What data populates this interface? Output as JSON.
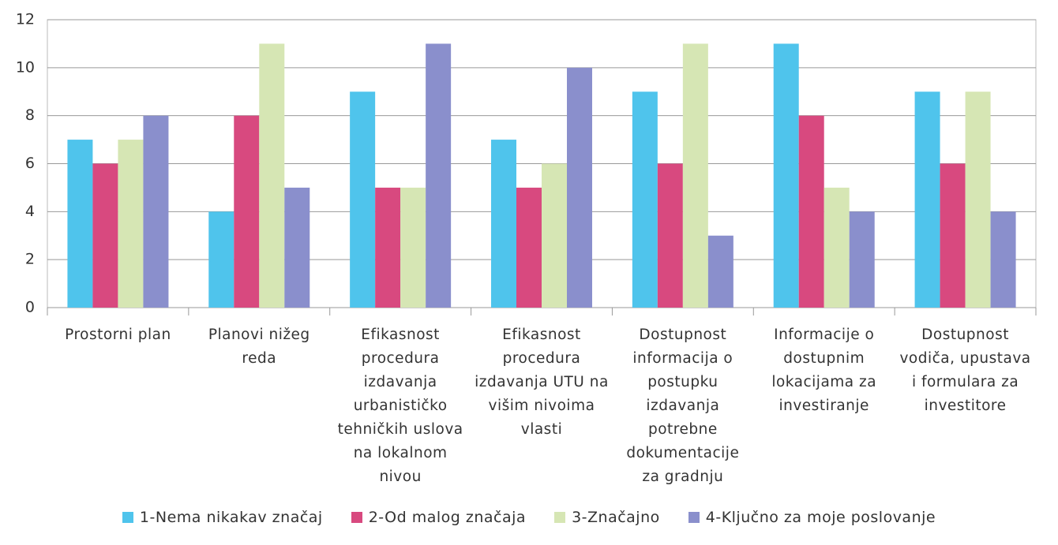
{
  "chart_data": {
    "type": "bar",
    "categories": [
      "Prostorni plan",
      "Planovi nižeg reda",
      "Efikasnost procedura izdavanja urbanističko tehničkih uslova na lokalnom nivou",
      "Efikasnost procedura izdavanja UTU na višim nivoima vlasti",
      "Dostupnost informacija o postupku izdavanja potrebne dokumentacije za gradnju",
      "Informacije o dostupnim lokacijama za investiranje",
      "Dostupnost vodiča, upustava i formulara za investitore"
    ],
    "series": [
      {
        "name": "1-Nema nikakav značaj",
        "color": "#4fc4ec",
        "values": [
          7,
          4,
          9,
          7,
          9,
          11,
          9
        ]
      },
      {
        "name": "2-Od malog značaja",
        "color": "#d8497f",
        "values": [
          6,
          8,
          5,
          5,
          6,
          8,
          6
        ]
      },
      {
        "name": "3-Značajno",
        "color": "#d6e6b4",
        "values": [
          7,
          11,
          5,
          6,
          11,
          5,
          9
        ]
      },
      {
        "name": "4-Ključno za moje poslovanje",
        "color": "#8a8fcc",
        "values": [
          8,
          5,
          11,
          10,
          3,
          4,
          4
        ]
      }
    ],
    "ylim": [
      0,
      12
    ],
    "yticks": [
      0,
      2,
      4,
      6,
      8,
      10,
      12
    ],
    "grid": true,
    "legend": "bottom"
  }
}
